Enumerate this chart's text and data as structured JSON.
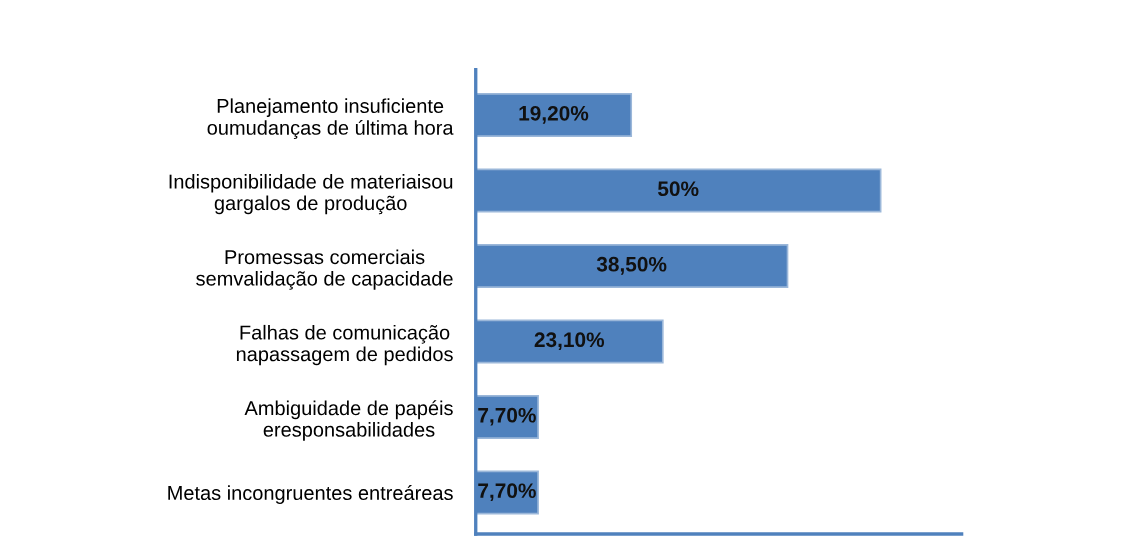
{
  "chart_data": {
    "type": "bar",
    "orientation": "horizontal",
    "categories": [
      "Planejamento insuficiente\noumudanças de última hora",
      "Indisponibilidade de materiaisou\ngargalos de produção",
      "Promessas comerciais\nsemvalidação de capacidade",
      "Falhas de comunicação\nnapassagem de pedidos",
      "Ambiguidade de papéis\neresponsabilidades",
      "Metas incongruentes entreáreas"
    ],
    "values": [
      19.2,
      50,
      38.5,
      23.1,
      7.7,
      7.7
    ],
    "value_labels": [
      "19,20%",
      "50%",
      "38,50%",
      "23,10%",
      "7,70%",
      "7,70%"
    ],
    "color": "#4f81bd",
    "xlim": [
      0,
      60
    ],
    "tick_labels": "y",
    "grid": false,
    "legend": false
  }
}
